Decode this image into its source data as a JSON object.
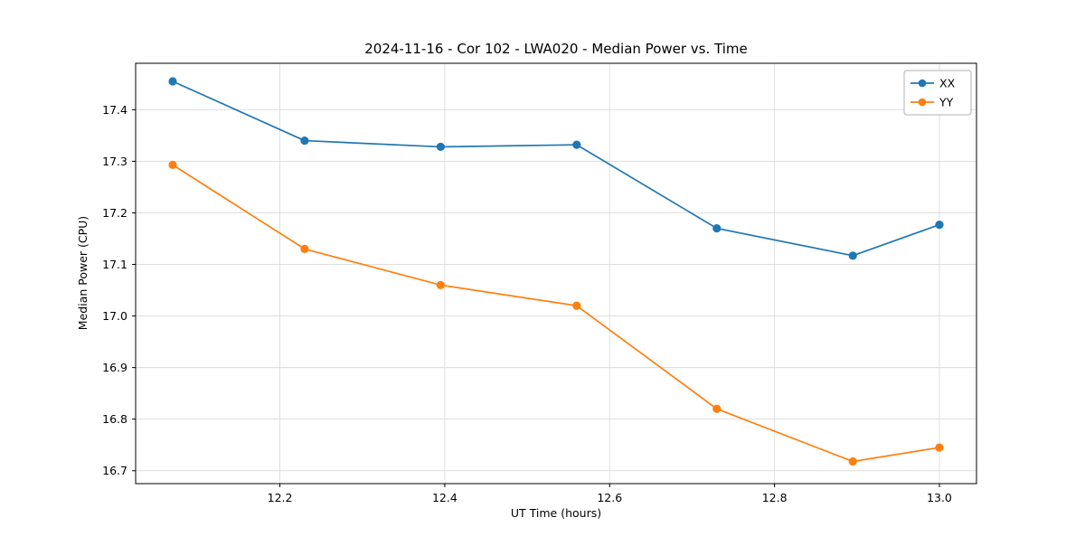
{
  "chart_data": {
    "type": "line",
    "title": "2024-11-16 - Cor 102 - LWA020 - Median Power vs. Time",
    "xlabel": "UT Time (hours)",
    "ylabel": "Median Power (CPU)",
    "xlim": [
      12.025,
      13.045
    ],
    "ylim": [
      16.675,
      17.49
    ],
    "xtick_values": [
      12.2,
      12.4,
      12.6,
      12.8,
      13.0
    ],
    "xtick_labels": [
      "12.2",
      "12.4",
      "12.6",
      "12.8",
      "13.0"
    ],
    "ytick_values": [
      16.7,
      16.8,
      16.9,
      17.0,
      17.1,
      17.2,
      17.3,
      17.4
    ],
    "ytick_labels": [
      "16.7",
      "16.8",
      "16.9",
      "17.0",
      "17.1",
      "17.2",
      "17.3",
      "17.4"
    ],
    "grid": true,
    "grid_color": "#dcdcdc",
    "axis_color": "#000000",
    "background": "#ffffff",
    "legend_position": "upper right",
    "marker": "circle",
    "x": [
      12.07,
      12.23,
      12.395,
      12.56,
      12.73,
      12.895,
      13.0
    ],
    "series": [
      {
        "name": "XX",
        "color": "#1f77b4",
        "values": [
          17.455,
          17.34,
          17.328,
          17.332,
          17.17,
          17.117,
          17.177
        ]
      },
      {
        "name": "YY",
        "color": "#ff7f0e",
        "values": [
          17.293,
          17.13,
          17.06,
          17.02,
          16.82,
          16.718,
          16.745
        ]
      }
    ]
  }
}
